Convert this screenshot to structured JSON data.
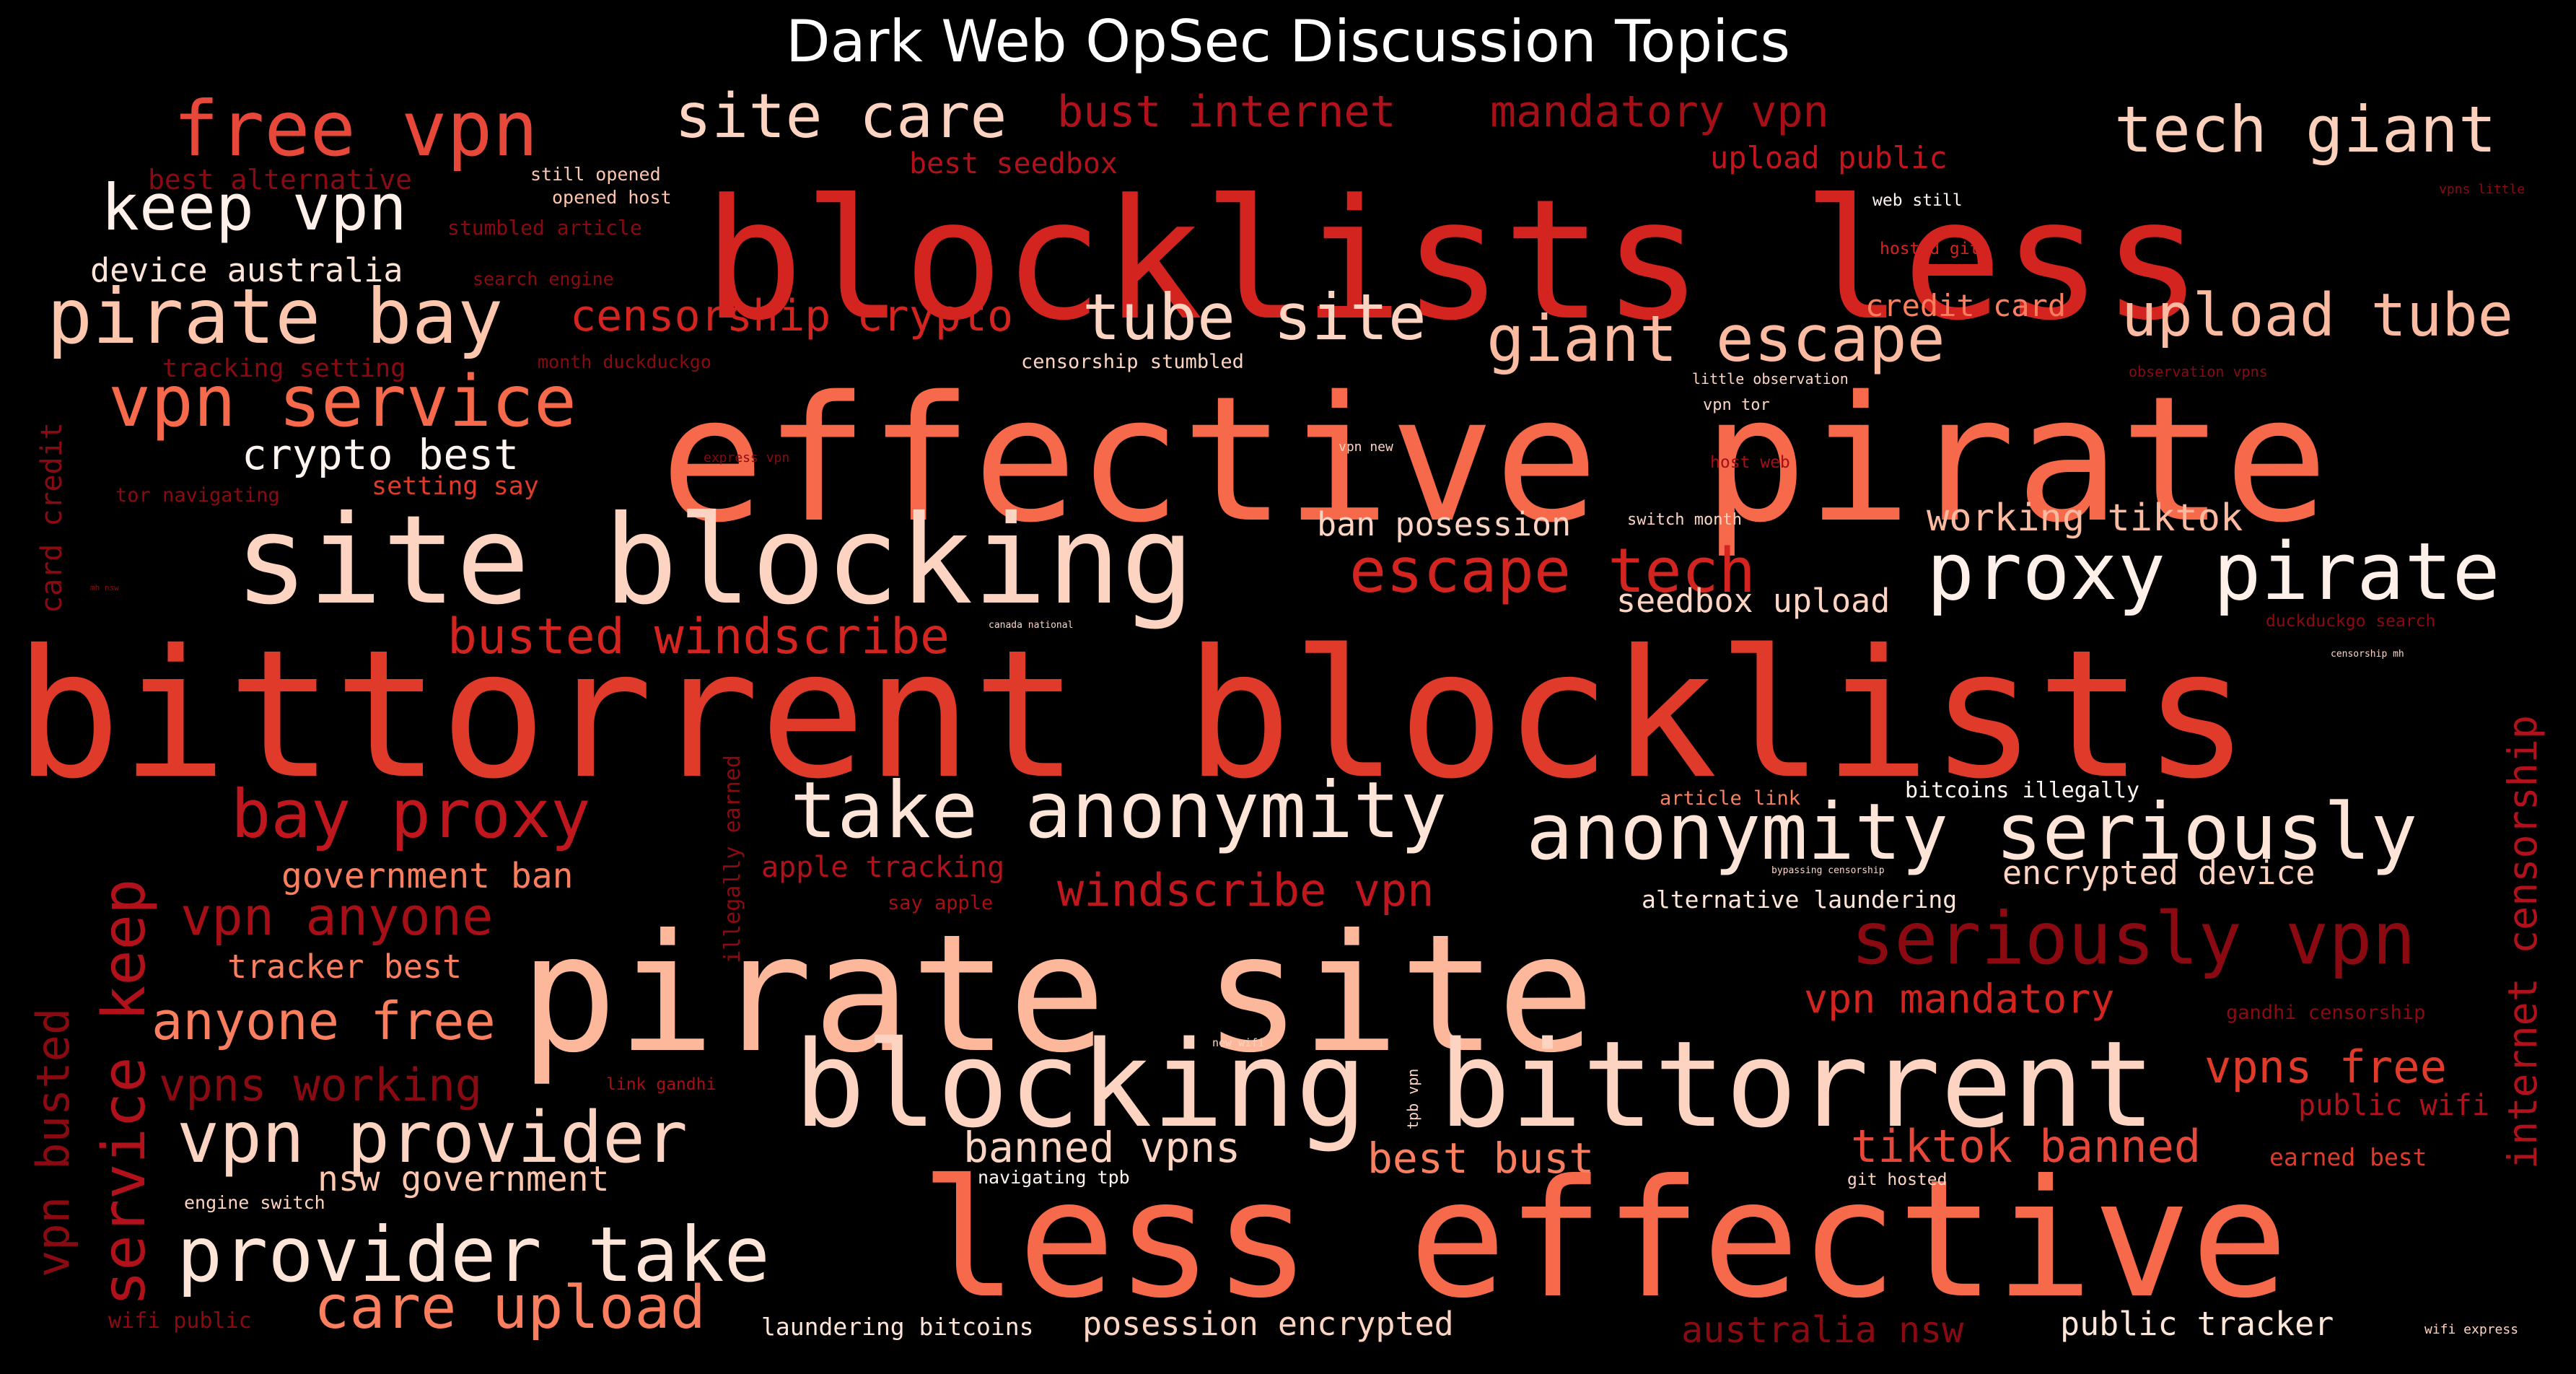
{
  "title": "Dark Web OpSec Discussion Topics",
  "words": [
    {
      "text": "bittorrent blocklists",
      "color": "#e03a2a"
    },
    {
      "text": "effective pirate",
      "color": "#f6694a"
    },
    {
      "text": "blocklists less",
      "color": "#d42420"
    },
    {
      "text": "pirate site",
      "color": "#fdb79b"
    },
    {
      "text": "less effective",
      "color": "#f6694a"
    },
    {
      "text": "site blocking",
      "color": "#fdd4c2"
    },
    {
      "text": "blocking bittorrent",
      "color": "#fdd4c2"
    },
    {
      "text": "proxy pirate",
      "color": "#fff1ea"
    },
    {
      "text": "take anonymity",
      "color": "#fee5d8"
    },
    {
      "text": "anonymity seriously",
      "color": "#fee5d8"
    },
    {
      "text": "free vpn",
      "color": "#e8483a"
    },
    {
      "text": "tech giant",
      "color": "#fdd0bc"
    },
    {
      "text": "keep vpn",
      "color": "#fff1ea"
    },
    {
      "text": "pirate bay",
      "color": "#fdc6ad"
    },
    {
      "text": "vpn service",
      "color": "#f6694a"
    },
    {
      "text": "site care",
      "color": "#fdd4c2"
    },
    {
      "text": "bust internet",
      "color": "#b0111b"
    },
    {
      "text": "mandatory vpn",
      "color": "#a50f15"
    },
    {
      "text": "tube site",
      "color": "#fdd4c2"
    },
    {
      "text": "giant escape",
      "color": "#fcbba1"
    },
    {
      "text": "upload tube",
      "color": "#fcbba1"
    },
    {
      "text": "escape tech",
      "color": "#d42420"
    },
    {
      "text": "bay proxy",
      "color": "#c0161d"
    },
    {
      "text": "vpn provider",
      "color": "#fdd4c2"
    },
    {
      "text": "provider take",
      "color": "#fee5d8"
    },
    {
      "text": "care upload",
      "color": "#fb7f5f"
    },
    {
      "text": "seriously vpn",
      "color": "#8b0a12"
    },
    {
      "text": "service keep",
      "color": "#b0111b"
    },
    {
      "text": "internet censorship",
      "color": "#b0111b"
    },
    {
      "text": "vpn busted",
      "color": "#8b0a12"
    },
    {
      "text": "anyone free",
      "color": "#fb7f5f"
    },
    {
      "text": "vpn anyone",
      "color": "#a50f15"
    },
    {
      "text": "vpns working",
      "color": "#8b0a12"
    },
    {
      "text": "windscribe vpn",
      "color": "#c0161d"
    },
    {
      "text": "busted windscribe",
      "color": "#d42420"
    },
    {
      "text": "censorship crypto",
      "color": "#d42420"
    },
    {
      "text": "crypto best",
      "color": "#fff5f0"
    },
    {
      "text": "device australia",
      "color": "#fee5d8"
    },
    {
      "text": "best alternative",
      "color": "#8b0a12"
    },
    {
      "text": "best seedbox",
      "color": "#b0111b"
    },
    {
      "text": "upload public",
      "color": "#c0161d"
    },
    {
      "text": "credit card",
      "color": "#fb7f5f"
    },
    {
      "text": "working tiktok",
      "color": "#fcbba1"
    },
    {
      "text": "ban posession",
      "color": "#fdd4c2"
    },
    {
      "text": "seedbox upload",
      "color": "#fdd4c2"
    },
    {
      "text": "vpn mandatory",
      "color": "#d42420"
    },
    {
      "text": "vpns free",
      "color": "#e03a2a"
    },
    {
      "text": "public wifi",
      "color": "#b0111b"
    },
    {
      "text": "tiktok banned",
      "color": "#e8483a"
    },
    {
      "text": "best bust",
      "color": "#fb7f5f"
    },
    {
      "text": "banned vpns",
      "color": "#fdd4c2"
    },
    {
      "text": "nsw government",
      "color": "#fdc6ad"
    },
    {
      "text": "government ban",
      "color": "#fb7f5f"
    },
    {
      "text": "tracker best",
      "color": "#fb7f5f"
    },
    {
      "text": "apple tracking",
      "color": "#b0111b"
    },
    {
      "text": "encrypted device",
      "color": "#fdd4c2"
    },
    {
      "text": "alternative laundering",
      "color": "#fee5d8"
    },
    {
      "text": "laundering bitcoins",
      "color": "#fee5d8"
    },
    {
      "text": "posession encrypted",
      "color": "#fdd4c2"
    },
    {
      "text": "australia nsw",
      "color": "#8b0a12"
    },
    {
      "text": "public tracker",
      "color": "#fee5d8"
    },
    {
      "text": "illegally earned",
      "color": "#8b0a12"
    },
    {
      "text": "card credit",
      "color": "#8b0a12"
    },
    {
      "text": "setting say",
      "color": "#e03a2a"
    },
    {
      "text": "tracking setting",
      "color": "#8b0a12"
    },
    {
      "text": "tor navigating",
      "color": "#8b0a12"
    },
    {
      "text": "stumbled article",
      "color": "#8b0a12"
    },
    {
      "text": "search engine",
      "color": "#8b0a12"
    },
    {
      "text": "month duckduckgo",
      "color": "#8b0a12"
    },
    {
      "text": "censorship stumbled",
      "color": "#fdd4c2"
    },
    {
      "text": "still opened",
      "color": "#fdc6ad"
    },
    {
      "text": "opened host",
      "color": "#fdc6ad"
    },
    {
      "text": "web still",
      "color": "#fff5f0"
    },
    {
      "text": "hosted git",
      "color": "#d42420"
    },
    {
      "text": "vpns little",
      "color": "#8b0a12"
    },
    {
      "text": "little observation",
      "color": "#fdd4c2"
    },
    {
      "text": "observation vpns",
      "color": "#8b0a12"
    },
    {
      "text": "vpn tor",
      "color": "#fdd4c2"
    },
    {
      "text": "vpn new",
      "color": "#fdd4c2"
    },
    {
      "text": "host web",
      "color": "#a50f15"
    },
    {
      "text": "express vpn",
      "color": "#8b0a12"
    },
    {
      "text": "switch month",
      "color": "#fdd4c2"
    },
    {
      "text": "canada national",
      "color": "#fdd4c2"
    },
    {
      "text": "duckduckgo search",
      "color": "#8b0a12"
    },
    {
      "text": "censorship mh",
      "color": "#fdd4c2"
    },
    {
      "text": "mh nsw",
      "color": "#8b0a12"
    },
    {
      "text": "article link",
      "color": "#fb7f5f"
    },
    {
      "text": "bitcoins illegally",
      "color": "#fff5f0"
    },
    {
      "text": "bypassing censorship",
      "color": "#fdd4c2"
    },
    {
      "text": "say apple",
      "color": "#a50f15"
    },
    {
      "text": "gandhi censorship",
      "color": "#8b0a12"
    },
    {
      "text": "new wifi",
      "color": "#fdd4c2"
    },
    {
      "text": "link gandhi",
      "color": "#a50f15"
    },
    {
      "text": "tpb vpn",
      "color": "#fdd4c2"
    },
    {
      "text": "navigating tpb",
      "color": "#fff5f0"
    },
    {
      "text": "engine switch",
      "color": "#fdd4c2"
    },
    {
      "text": "git hosted",
      "color": "#fdd4c2"
    },
    {
      "text": "earned best",
      "color": "#e03a2a"
    },
    {
      "text": "wifi public",
      "color": "#8b0a12"
    },
    {
      "text": "wifi express",
      "color": "#fdd4c2"
    }
  ]
}
